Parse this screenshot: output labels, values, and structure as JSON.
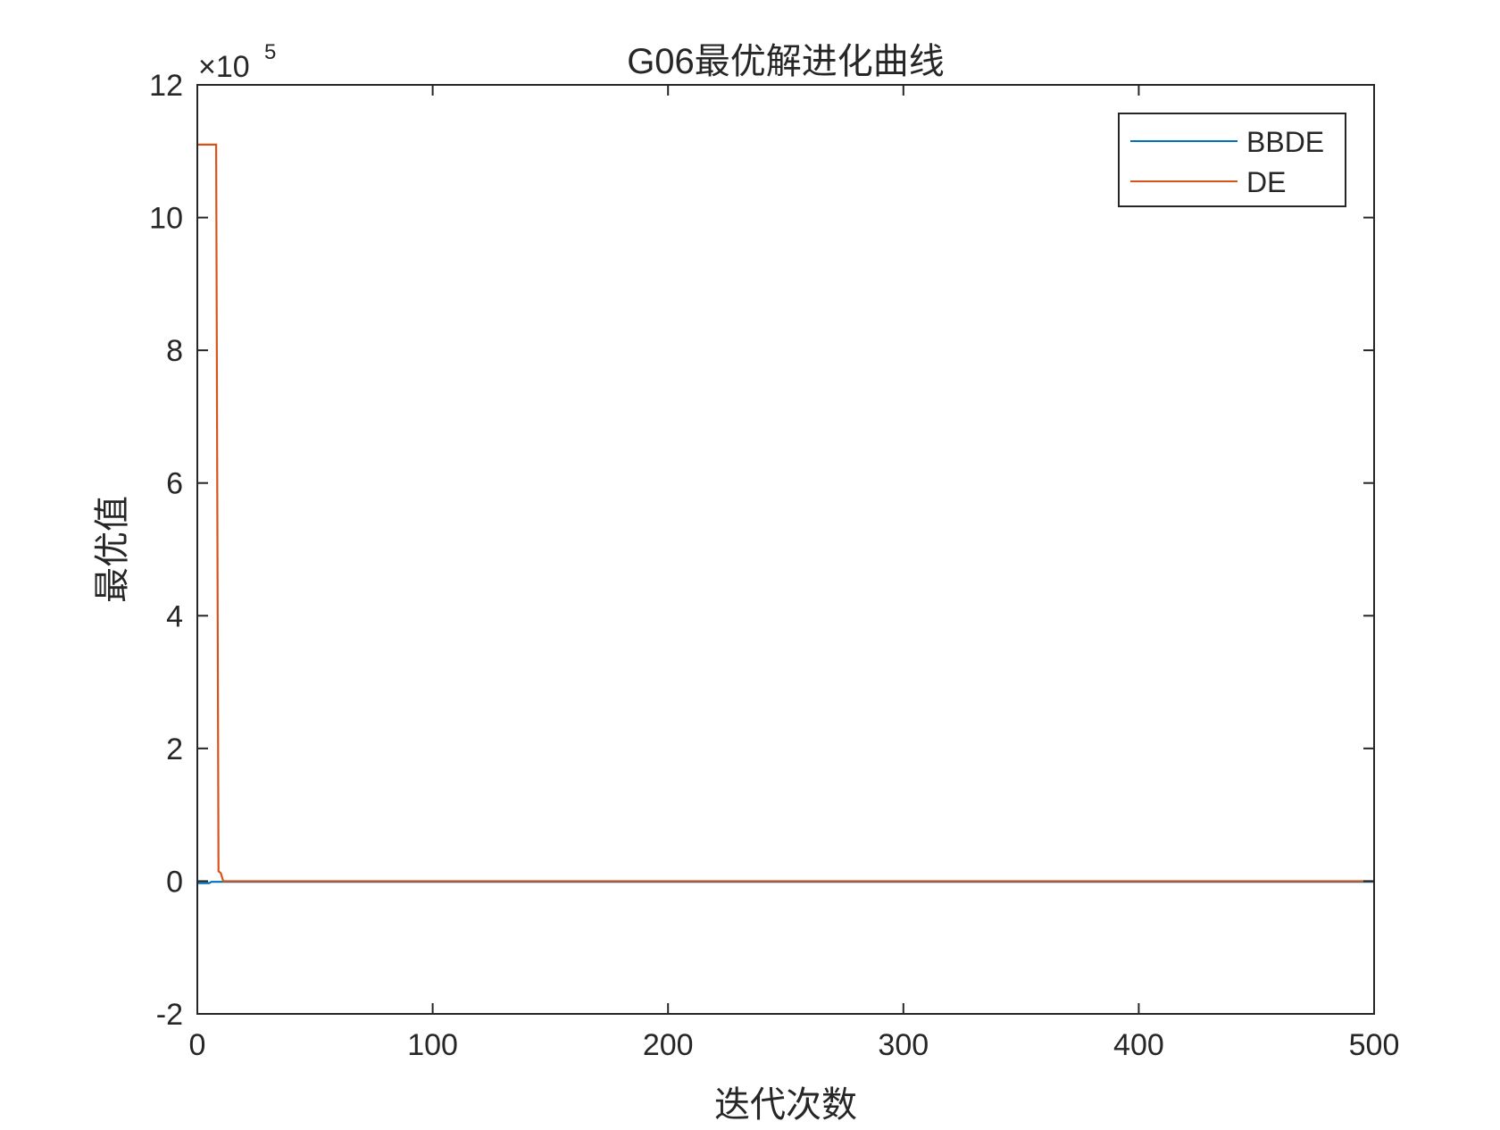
{
  "chart_data": {
    "type": "line",
    "title": "G06最优解进化曲线",
    "xlabel": "迭代次数",
    "ylabel": "最优值",
    "xlim": [
      0,
      500
    ],
    "ylim": [
      -2,
      12
    ],
    "y_exponent_label": "×10",
    "y_exponent_power": "5",
    "y_scale_factor": 100000,
    "x_ticks": [
      "0",
      "100",
      "200",
      "300",
      "400",
      "500"
    ],
    "y_ticks": [
      "-2",
      "0",
      "2",
      "4",
      "6",
      "8",
      "10",
      "12"
    ],
    "x_tick_values": [
      0,
      100,
      200,
      300,
      400,
      500
    ],
    "y_tick_values": [
      -2,
      0,
      2,
      4,
      6,
      8,
      10,
      12
    ],
    "grid": false,
    "legend_position": "top-right",
    "series": [
      {
        "name": "BBDE",
        "color": "#0072BD",
        "x": [
          0,
          5,
          6,
          500
        ],
        "y": [
          -0.03,
          -0.03,
          -0.01,
          -0.01
        ]
      },
      {
        "name": "DE",
        "color": "#D95319",
        "x": [
          0,
          8,
          9,
          10,
          11,
          500
        ],
        "y": [
          11.1,
          11.1,
          0.15,
          0.12,
          0.0,
          0.0
        ]
      }
    ]
  }
}
